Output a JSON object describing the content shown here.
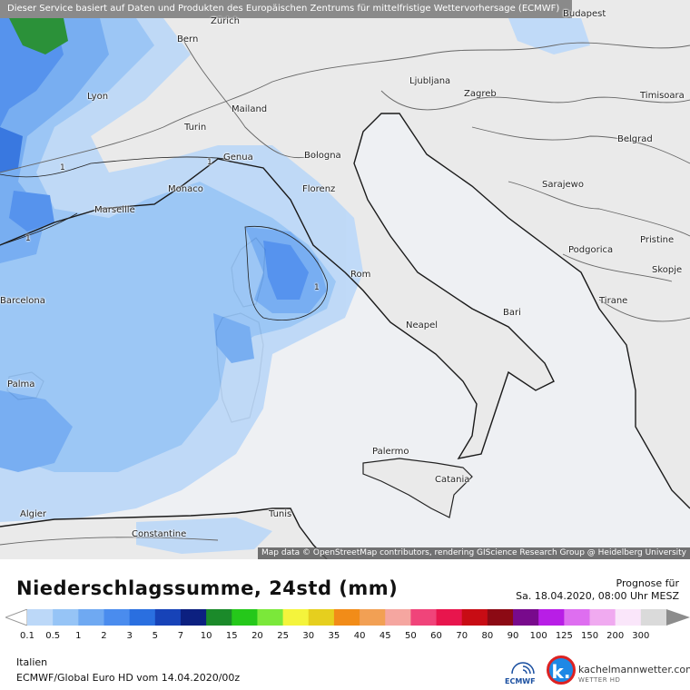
{
  "map": {
    "disclaimer": "Dieser Service basiert auf Daten und Produkten des Europäischen Zentrums für mittelfristige Wettervorhersage (ECMWF)",
    "attribution": "Map data © OpenStreetMap contributors, rendering GIScience Research Group @ Heidelberg University",
    "cities": [
      {
        "name": "Budapest"
      },
      {
        "name": "Zürich"
      },
      {
        "name": "Bern"
      },
      {
        "name": "Ljubljana"
      },
      {
        "name": "Zagreb"
      },
      {
        "name": "Timisoara"
      },
      {
        "name": "Lyon"
      },
      {
        "name": "Mailand"
      },
      {
        "name": "Turin"
      },
      {
        "name": "Genua"
      },
      {
        "name": "Bologna"
      },
      {
        "name": "Belgrad"
      },
      {
        "name": "Monaco"
      },
      {
        "name": "Florenz"
      },
      {
        "name": "Sarajewo"
      },
      {
        "name": "Marseille"
      },
      {
        "name": "Podgorica"
      },
      {
        "name": "Pristine"
      },
      {
        "name": "Rom"
      },
      {
        "name": "Skopje"
      },
      {
        "name": "Barcelona"
      },
      {
        "name": "Tirane"
      },
      {
        "name": "Bari"
      },
      {
        "name": "Neapel"
      },
      {
        "name": "Palma"
      },
      {
        "name": "Palermo"
      },
      {
        "name": "Catania"
      },
      {
        "name": "Algier"
      },
      {
        "name": "Tunis"
      },
      {
        "name": "Constantine"
      }
    ],
    "contour_label": "1"
  },
  "footer": {
    "title": "Niederschlagssumme, 24std (mm)",
    "forecast_label": "Prognose für",
    "forecast_date": "Sa. 18.04.2020, 08:00 Uhr MESZ",
    "region": "Italien",
    "model": "ECMWF/Global Euro HD vom  14.04.2020/00z",
    "ecmwf_label": "ECMWF",
    "brand_name": "kachelmannwetter.com",
    "brand_sub": "WETTER HD",
    "brand_letter": "k."
  },
  "scale": {
    "ticks": [
      "0.1",
      "0.5",
      "1",
      "2",
      "3",
      "5",
      "7",
      "10",
      "15",
      "20",
      "25",
      "30",
      "35",
      "40",
      "45",
      "50",
      "60",
      "70",
      "80",
      "90",
      "100",
      "125",
      "150",
      "200",
      "300"
    ],
    "colors": [
      "#bcd8f8",
      "#96c4f6",
      "#6fa9f2",
      "#4a8cee",
      "#2a6fe0",
      "#1743b8",
      "#0c2080",
      "#1b8a2a",
      "#25c81a",
      "#7be83a",
      "#f4f43c",
      "#e6cf1e",
      "#f28c18",
      "#f2a054",
      "#f5a6a0",
      "#f0447a",
      "#e8154d",
      "#c80c14",
      "#8c0a14",
      "#780a8c",
      "#b81ee6",
      "#de6ef0",
      "#f0aaf0",
      "#fae6fa",
      "#dadada"
    ],
    "under_color": "#ffffff",
    "over_color": "#8c8c8c"
  }
}
